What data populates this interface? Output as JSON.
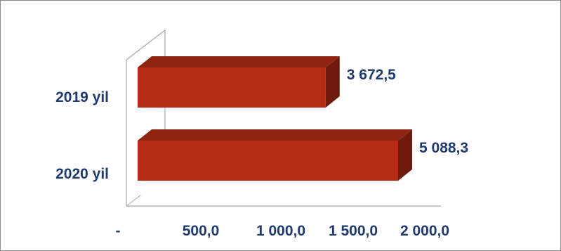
{
  "chart_data": {
    "type": "bar",
    "orientation": "horizontal",
    "style": "3d",
    "categories": [
      "2019 yil",
      "2020 yil"
    ],
    "values": [
      3672.5,
      5088.3
    ],
    "value_labels": [
      "3 672,5",
      "5 088,3"
    ],
    "x_tick_labels": [
      "-",
      "500,0",
      "1 000,0",
      "1 500,0",
      "2 000,0"
    ],
    "title": "",
    "xlabel": "",
    "ylabel": "",
    "legend": "none",
    "grid": false,
    "colors": {
      "bar_front": "#b52a13",
      "bar_top": "#8f2410",
      "bar_side": "#6e1a0c",
      "text": "#1f3a6e",
      "axis": "#a6a6a6"
    }
  }
}
